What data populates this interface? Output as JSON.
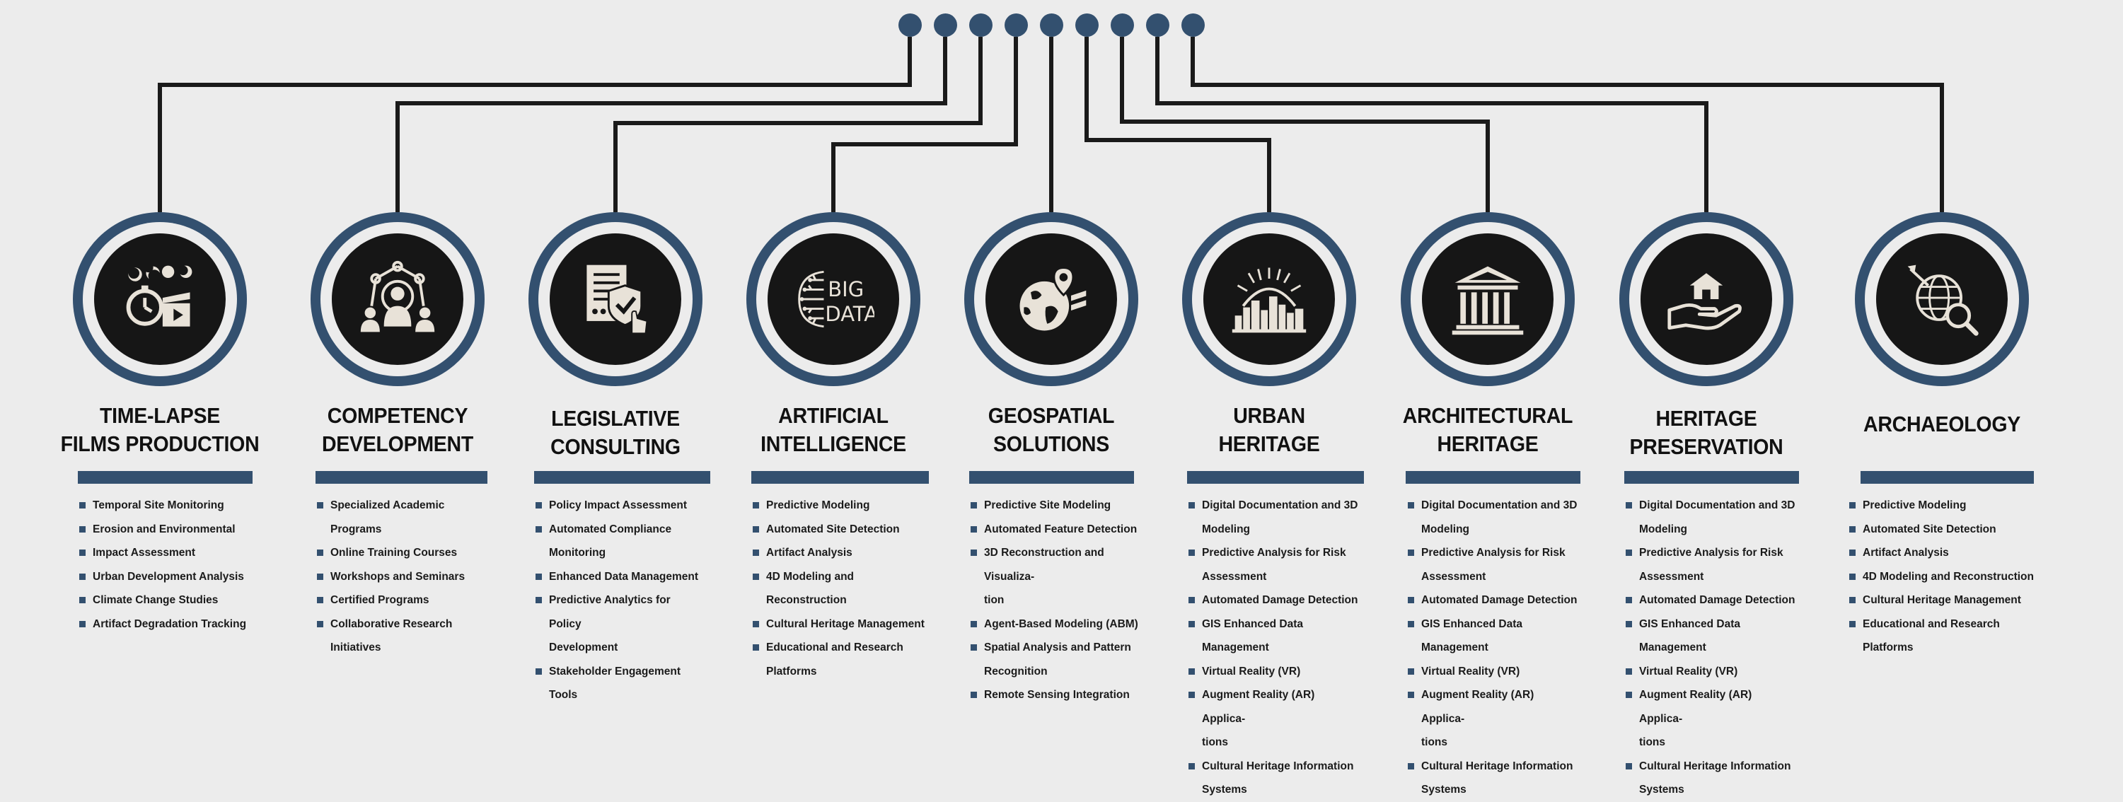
{
  "colors": {
    "navy": "#33506f",
    "dark": "#161616",
    "line": "#1a1a1a",
    "background": "#ececec"
  },
  "categories": [
    {
      "icon": "time-lapse-stopwatch-icon",
      "title": "TIME-LAPSE\nFILMS PRODUCTION",
      "items": [
        [
          "Temporal Site Monitoring"
        ],
        [
          "Erosion and Environmental"
        ],
        [
          "Impact Assessment"
        ],
        [
          "Urban Development Analysis"
        ],
        [
          "Climate Change Studies"
        ],
        [
          "Artifact Degradation Tracking"
        ]
      ]
    },
    {
      "icon": "team-network-icon",
      "title": "COMPETENCY\nDEVELOPMENT",
      "items": [
        [
          "Specialized Academic Programs"
        ],
        [
          "Online Training Courses"
        ],
        [
          "Workshops and Seminars"
        ],
        [
          "Certified Programs"
        ],
        [
          "Collaborative Research Initiatives"
        ]
      ]
    },
    {
      "icon": "document-shield-icon",
      "title": "LEGISLATIVE\nCONSULTING",
      "items": [
        [
          "Policy Impact Assessment"
        ],
        [
          "Automated Compliance",
          "Monitoring"
        ],
        [
          "Enhanced Data Management"
        ],
        [
          "Predictive Analytics for Policy",
          "Development"
        ],
        [
          "Stakeholder Engagement Tools"
        ]
      ]
    },
    {
      "icon": "big-data-icon",
      "icon_text": [
        "BIG",
        "DATA"
      ],
      "title": "ARTIFICIAL\nINTELLIGENCE",
      "items": [
        [
          "Predictive Modeling"
        ],
        [
          "Automated Site Detection"
        ],
        [
          "Artifact Analysis"
        ],
        [
          "4D Modeling and Reconstruction"
        ],
        [
          "Cultural Heritage Management"
        ],
        [
          "Educational and Research",
          "Platforms"
        ]
      ]
    },
    {
      "icon": "globe-location-icon",
      "title": "GEOSPATIAL\nSOLUTIONS",
      "items": [
        [
          "Predictive Site Modeling"
        ],
        [
          "Automated Feature Detection"
        ],
        [
          "3D Reconstruction and Visualiza-",
          "tion"
        ],
        [
          "Agent-Based Modeling (ABM)"
        ],
        [
          "Spatial Analysis and Pattern",
          "Recognition"
        ],
        [
          "Remote Sensing Integration"
        ]
      ]
    },
    {
      "icon": "city-skyline-icon",
      "title": "URBAN\nHERITAGE",
      "items": [
        [
          "Digital Documentation and 3D",
          "Modeling"
        ],
        [
          "Predictive Analysis for Risk",
          "Assessment"
        ],
        [
          "Automated Damage Detection"
        ],
        [
          "GIS Enhanced Data Management"
        ],
        [
          "Virtual Reality (VR)"
        ],
        [
          "Augment Reality (AR) Applica-",
          "tions"
        ],
        [
          "Cultural Heritage Information",
          "Systems"
        ]
      ]
    },
    {
      "icon": "classical-building-icon",
      "title": "ARCHITECTURAL\nHERITAGE",
      "items": [
        [
          "Digital Documentation and 3D",
          "Modeling"
        ],
        [
          "Predictive Analysis for Risk",
          "Assessment"
        ],
        [
          "Automated Damage Detection"
        ],
        [
          "GIS Enhanced Data Management"
        ],
        [
          "Virtual Reality (VR)"
        ],
        [
          "Augment Reality (AR) Applica-",
          "tions"
        ],
        [
          "Cultural Heritage Information",
          "Systems"
        ]
      ]
    },
    {
      "icon": "hand-house-icon",
      "title": "HERITAGE\nPRESERVATION",
      "items": [
        [
          "Digital Documentation and 3D",
          "Modeling"
        ],
        [
          "Predictive Analysis for Risk",
          "Assessment"
        ],
        [
          "Automated Damage Detection"
        ],
        [
          "GIS Enhanced Data Management"
        ],
        [
          "Virtual Reality (VR)"
        ],
        [
          "Augment Reality (AR) Applica-",
          "tions"
        ],
        [
          "Cultural Heritage Information",
          "Systems"
        ]
      ]
    },
    {
      "icon": "globe-magnifier-icon",
      "title": "ARCHAEOLOGY",
      "items": [
        [
          "Predictive Modeling"
        ],
        [
          "Automated Site Detection"
        ],
        [
          "Artifact Analysis"
        ],
        [
          "4D Modeling and Reconstruction"
        ],
        [
          "Cultural Heritage Management"
        ],
        [
          "Educational and Research",
          "Platforms"
        ]
      ]
    }
  ]
}
